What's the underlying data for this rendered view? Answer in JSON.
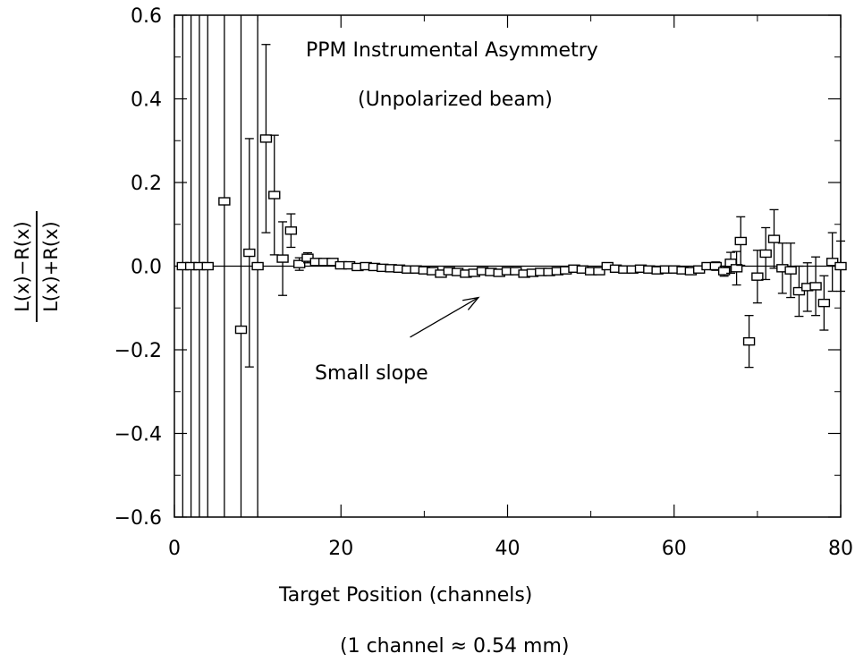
{
  "chart_data": {
    "type": "scatter",
    "title": "PPM Instrumental Asymmetry",
    "subtitle": "(Unpolarized beam)",
    "xlabel": "Target Position (channels)",
    "xlabel_note": "(1 channel ≈ 0.54 mm)",
    "ylabel_numerator": "L(x)−R(x)",
    "ylabel_denominator": "L(x)+R(x)",
    "annotation": "Small slope",
    "xlim": [
      0,
      80
    ],
    "ylim": [
      -0.6,
      0.6
    ],
    "x_ticks": [
      0,
      20,
      40,
      60,
      80
    ],
    "y_ticks": [
      -0.6,
      -0.4,
      -0.2,
      0.0,
      0.2,
      0.4,
      0.6
    ],
    "x_tick_labels": [
      "0",
      "20",
      "40",
      "60",
      "80"
    ],
    "y_tick_labels": [
      "−0.6",
      "−0.4",
      "−0.2",
      "0.0",
      "0.2",
      "0.4",
      "0.6"
    ],
    "zero_line": true,
    "marker": "open-square",
    "points": [
      {
        "x": 1,
        "y": 0.0,
        "err": 1.0
      },
      {
        "x": 2,
        "y": 0.0,
        "err": 1.0
      },
      {
        "x": 3,
        "y": 0.0,
        "err": 1.0
      },
      {
        "x": 4,
        "y": 0.0,
        "err": 1.0
      },
      {
        "x": 6,
        "y": 0.155,
        "err": 1.0
      },
      {
        "x": 8,
        "y": -0.152,
        "err": 1.0
      },
      {
        "x": 9,
        "y": 0.032,
        "err": 0.273
      },
      {
        "x": 10,
        "y": 0.0,
        "err": 1.0
      },
      {
        "x": 11,
        "y": 0.305,
        "err": 0.225
      },
      {
        "x": 12,
        "y": 0.17,
        "err": 0.143
      },
      {
        "x": 13,
        "y": 0.018,
        "err": 0.088
      },
      {
        "x": 14,
        "y": 0.085,
        "err": 0.04
      },
      {
        "x": 15,
        "y": 0.005,
        "err": 0.015
      },
      {
        "x": 16,
        "y": 0.02,
        "err": 0.012
      },
      {
        "x": 17,
        "y": 0.01,
        "err": 0.006
      },
      {
        "x": 18,
        "y": 0.01,
        "err": 0.006
      },
      {
        "x": 19,
        "y": 0.01,
        "err": 0.006
      },
      {
        "x": 20,
        "y": 0.002,
        "err": 0.005
      },
      {
        "x": 21,
        "y": 0.002,
        "err": 0.005
      },
      {
        "x": 22,
        "y": -0.002,
        "err": 0.005
      },
      {
        "x": 23,
        "y": 0.0,
        "err": 0.005
      },
      {
        "x": 24,
        "y": -0.002,
        "err": 0.005
      },
      {
        "x": 25,
        "y": -0.004,
        "err": 0.005
      },
      {
        "x": 26,
        "y": -0.005,
        "err": 0.005
      },
      {
        "x": 27,
        "y": -0.006,
        "err": 0.005
      },
      {
        "x": 28,
        "y": -0.008,
        "err": 0.005
      },
      {
        "x": 29,
        "y": -0.008,
        "err": 0.005
      },
      {
        "x": 30,
        "y": -0.01,
        "err": 0.005
      },
      {
        "x": 31,
        "y": -0.012,
        "err": 0.005
      },
      {
        "x": 32,
        "y": -0.018,
        "err": 0.005
      },
      {
        "x": 33,
        "y": -0.012,
        "err": 0.005
      },
      {
        "x": 34,
        "y": -0.014,
        "err": 0.005
      },
      {
        "x": 35,
        "y": -0.018,
        "err": 0.005
      },
      {
        "x": 36,
        "y": -0.016,
        "err": 0.005
      },
      {
        "x": 37,
        "y": -0.012,
        "err": 0.005
      },
      {
        "x": 38,
        "y": -0.014,
        "err": 0.005
      },
      {
        "x": 39,
        "y": -0.016,
        "err": 0.005
      },
      {
        "x": 40,
        "y": -0.012,
        "err": 0.005
      },
      {
        "x": 41,
        "y": -0.012,
        "err": 0.005
      },
      {
        "x": 42,
        "y": -0.018,
        "err": 0.005
      },
      {
        "x": 43,
        "y": -0.016,
        "err": 0.005
      },
      {
        "x": 44,
        "y": -0.014,
        "err": 0.005
      },
      {
        "x": 45,
        "y": -0.014,
        "err": 0.005
      },
      {
        "x": 46,
        "y": -0.012,
        "err": 0.005
      },
      {
        "x": 47,
        "y": -0.01,
        "err": 0.005
      },
      {
        "x": 48,
        "y": -0.006,
        "err": 0.005
      },
      {
        "x": 49,
        "y": -0.008,
        "err": 0.005
      },
      {
        "x": 50,
        "y": -0.012,
        "err": 0.005
      },
      {
        "x": 51,
        "y": -0.012,
        "err": 0.005
      },
      {
        "x": 52,
        "y": 0.0,
        "err": 0.005
      },
      {
        "x": 53,
        "y": -0.006,
        "err": 0.005
      },
      {
        "x": 54,
        "y": -0.008,
        "err": 0.005
      },
      {
        "x": 55,
        "y": -0.008,
        "err": 0.005
      },
      {
        "x": 56,
        "y": -0.006,
        "err": 0.005
      },
      {
        "x": 57,
        "y": -0.008,
        "err": 0.005
      },
      {
        "x": 58,
        "y": -0.01,
        "err": 0.005
      },
      {
        "x": 59,
        "y": -0.008,
        "err": 0.005
      },
      {
        "x": 60,
        "y": -0.008,
        "err": 0.005
      },
      {
        "x": 61,
        "y": -0.01,
        "err": 0.005
      },
      {
        "x": 62,
        "y": -0.012,
        "err": 0.005
      },
      {
        "x": 63,
        "y": -0.008,
        "err": 0.006
      },
      {
        "x": 64,
        "y": 0.0,
        "err": 0.008
      },
      {
        "x": 65,
        "y": 0.0,
        "err": 0.01
      },
      {
        "x": 66,
        "y": -0.012,
        "err": 0.012
      },
      {
        "x": 66.8,
        "y": 0.008,
        "err": 0.025
      },
      {
        "x": 67.5,
        "y": -0.005,
        "err": 0.04
      },
      {
        "x": 68,
        "y": 0.06,
        "err": 0.058
      },
      {
        "x": 69,
        "y": -0.18,
        "err": 0.062
      },
      {
        "x": 70,
        "y": -0.025,
        "err": 0.063
      },
      {
        "x": 71,
        "y": 0.03,
        "err": 0.062
      },
      {
        "x": 72,
        "y": 0.065,
        "err": 0.07
      },
      {
        "x": 73,
        "y": -0.005,
        "err": 0.06
      },
      {
        "x": 74,
        "y": -0.01,
        "err": 0.065
      },
      {
        "x": 75,
        "y": -0.06,
        "err": 0.06
      },
      {
        "x": 76,
        "y": -0.05,
        "err": 0.058
      },
      {
        "x": 77,
        "y": -0.048,
        "err": 0.07
      },
      {
        "x": 78,
        "y": -0.088,
        "err": 0.065
      },
      {
        "x": 79,
        "y": 0.01,
        "err": 0.07
      },
      {
        "x": 80,
        "y": 0.0,
        "err": 0.06
      }
    ]
  }
}
